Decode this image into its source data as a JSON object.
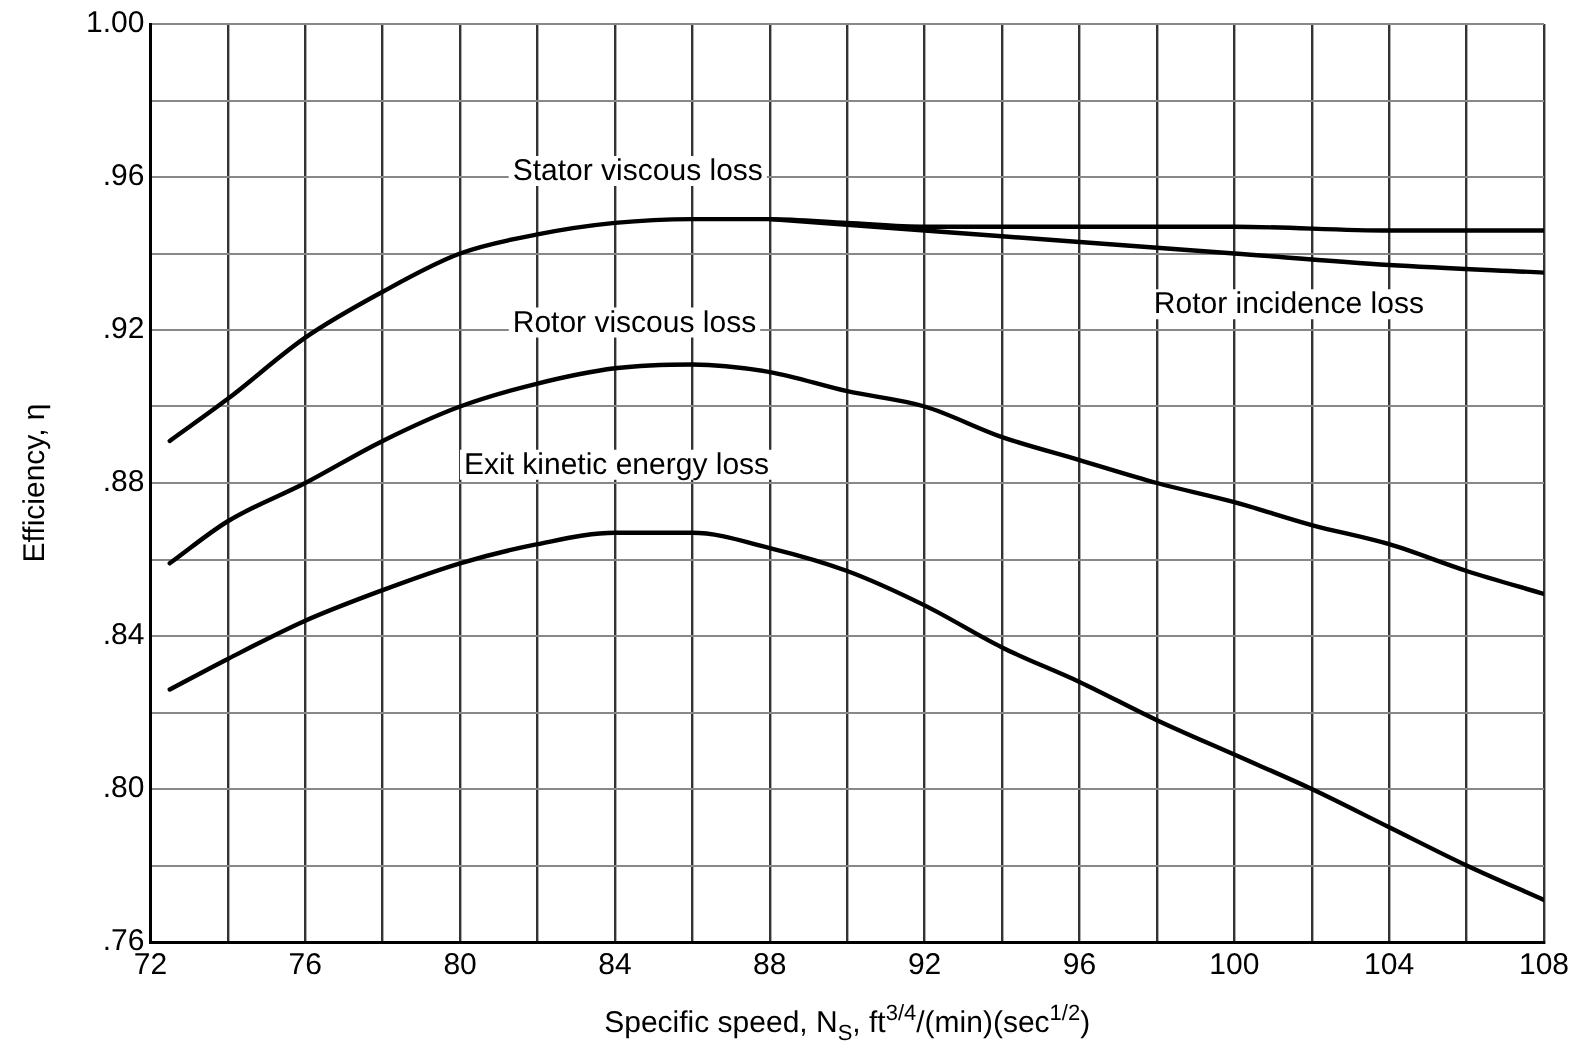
{
  "chart_data": {
    "type": "line",
    "xlabel": "Specific speed, N$_{S}$, ft$^{3/4}$/(min)(sec$^{1/2}$)",
    "ylabel": "Efficiency, η",
    "xlim": [
      72,
      108
    ],
    "ylim": [
      0.76,
      1.0
    ],
    "xticks": [
      72,
      {
        "value": 74,
        "label": null
      },
      76,
      {
        "value": 78,
        "label": null
      },
      80,
      {
        "value": 82,
        "label": null
      },
      84,
      {
        "value": 86,
        "label": null
      },
      88,
      {
        "value": 90,
        "label": null
      },
      92,
      {
        "value": 94,
        "label": null
      },
      96,
      {
        "value": 98,
        "label": null
      },
      100,
      {
        "value": 102,
        "label": null
      },
      104,
      {
        "value": 106,
        "label": null
      },
      108
    ],
    "yticks": [
      {
        "value": 0.76,
        "label": ".76"
      },
      {
        "value": 0.78,
        "label": null
      },
      {
        "value": 0.8,
        "label": ".80"
      },
      {
        "value": 0.82,
        "label": null
      },
      {
        "value": 0.84,
        "label": ".84"
      },
      {
        "value": 0.86,
        "label": null
      },
      {
        "value": 0.88,
        "label": ".88"
      },
      {
        "value": 0.9,
        "label": null
      },
      {
        "value": 0.92,
        "label": ".92"
      },
      {
        "value": 0.94,
        "label": null
      },
      {
        "value": 0.96,
        "label": ".96"
      },
      {
        "value": 0.98,
        "label": null
      },
      {
        "value": 1.0,
        "label": "1.00"
      }
    ],
    "grid": true,
    "legend": false,
    "marker": "none",
    "line_style": "solid",
    "series": [
      {
        "color": "#000000",
        "x": [
          72.5,
          74,
          76,
          78,
          80,
          82,
          84,
          86,
          88,
          90,
          92,
          96,
          100,
          104,
          108
        ],
        "values": [
          0.891,
          0.902,
          0.918,
          0.93,
          0.94,
          0.945,
          0.948,
          0.949,
          0.949,
          0.948,
          0.947,
          0.947,
          0.947,
          0.946,
          0.946
        ]
      },
      {
        "color": "#000000",
        "x": [
          88,
          92,
          96,
          100,
          104,
          108
        ],
        "values": [
          0.949,
          0.946,
          0.943,
          0.94,
          0.937,
          0.935
        ]
      },
      {
        "color": "#000000",
        "x": [
          72.5,
          74,
          76,
          78,
          80,
          82,
          84,
          86,
          88,
          90,
          92,
          94,
          96,
          98,
          100,
          102,
          104,
          106,
          108
        ],
        "values": [
          0.859,
          0.87,
          0.88,
          0.891,
          0.9,
          0.906,
          0.91,
          0.911,
          0.909,
          0.904,
          0.9,
          0.892,
          0.886,
          0.88,
          0.875,
          0.869,
          0.864,
          0.857,
          0.851
        ]
      },
      {
        "color": "#000000",
        "x": [
          72.5,
          74,
          76,
          78,
          80,
          82,
          84,
          86,
          88,
          90,
          92,
          94,
          96,
          98,
          100,
          102,
          104,
          106,
          108
        ],
        "values": [
          0.826,
          0.834,
          0.844,
          0.852,
          0.859,
          0.864,
          0.867,
          0.867,
          0.863,
          0.857,
          0.848,
          0.837,
          0.828,
          0.818,
          0.809,
          0.8,
          0.79,
          0.78,
          0.771
        ]
      }
    ],
    "annotations": [
      "Stator viscous loss",
      "Rotor viscous loss",
      "Exit kinetic energy loss",
      "Rotor incidence loss"
    ]
  }
}
